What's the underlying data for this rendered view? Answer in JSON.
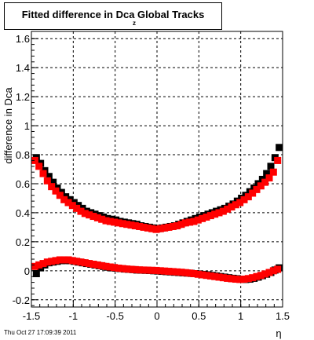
{
  "title": {
    "text": "Fitted difference in Dca   Global Tracks",
    "subscript": "z"
  },
  "footer": {
    "timestamp": "Thu Oct 27 17:09:39 2011"
  },
  "colors": {
    "series_black": "#000000",
    "series_red": "#ff0000",
    "grid": "#000000",
    "frame": "#000000"
  },
  "chart_data": {
    "type": "scatter",
    "title": "Fitted difference in Dca   Global Tracks",
    "xlabel": "η",
    "ylabel": "difference in Dca",
    "xlim": [
      -1.5,
      1.5
    ],
    "ylim": [
      -0.25,
      1.65
    ],
    "grid": true,
    "x_ticks": [
      "-1.5",
      "-1",
      "-0.5",
      "0",
      "0.5",
      "1",
      "1.5"
    ],
    "y_ticks": [
      "-0.2",
      "0",
      "0.2",
      "0.4",
      "0.6",
      "0.8",
      "1",
      "1.2",
      "1.4",
      "1.6"
    ],
    "x_tick_values": [
      -1.5,
      -1,
      -0.5,
      0,
      0.5,
      1,
      1.5
    ],
    "y_tick_values": [
      -0.2,
      0,
      0.2,
      0.4,
      0.6,
      0.8,
      1.0,
      1.2,
      1.4,
      1.6
    ],
    "x": [
      -1.45,
      -1.4,
      -1.35,
      -1.3,
      -1.25,
      -1.2,
      -1.15,
      -1.1,
      -1.05,
      -1.0,
      -0.95,
      -0.9,
      -0.85,
      -0.8,
      -0.75,
      -0.7,
      -0.65,
      -0.6,
      -0.55,
      -0.5,
      -0.45,
      -0.4,
      -0.35,
      -0.3,
      -0.25,
      -0.2,
      -0.15,
      -0.1,
      -0.05,
      0.0,
      0.05,
      0.1,
      0.15,
      0.2,
      0.25,
      0.3,
      0.35,
      0.4,
      0.45,
      0.5,
      0.55,
      0.6,
      0.65,
      0.7,
      0.75,
      0.8,
      0.85,
      0.9,
      0.95,
      1.0,
      1.05,
      1.1,
      1.15,
      1.2,
      1.25,
      1.3,
      1.35,
      1.4,
      1.45
    ],
    "series": [
      {
        "color": "#000000",
        "upper": [
          0.78,
          0.74,
          0.69,
          0.65,
          0.61,
          0.57,
          0.54,
          0.51,
          0.49,
          0.47,
          0.45,
          0.43,
          0.41,
          0.4,
          0.39,
          0.38,
          0.37,
          0.36,
          0.355,
          0.35,
          0.34,
          0.335,
          0.33,
          0.325,
          0.32,
          0.31,
          0.305,
          0.3,
          0.295,
          0.29,
          0.295,
          0.3,
          0.305,
          0.31,
          0.32,
          0.33,
          0.34,
          0.35,
          0.36,
          0.37,
          0.38,
          0.39,
          0.4,
          0.41,
          0.42,
          0.43,
          0.445,
          0.46,
          0.48,
          0.5,
          0.52,
          0.545,
          0.57,
          0.6,
          0.63,
          0.67,
          0.72,
          0.78,
          0.85
        ],
        "lower": [
          -0.02,
          0.02,
          0.04,
          0.055,
          0.06,
          0.065,
          0.07,
          0.07,
          0.07,
          0.065,
          0.06,
          0.055,
          0.05,
          0.045,
          0.04,
          0.035,
          0.03,
          0.025,
          0.02,
          0.018,
          0.015,
          0.012,
          0.01,
          0.008,
          0.005,
          0.004,
          0.003,
          0.002,
          0.0,
          -0.002,
          -0.004,
          -0.006,
          -0.008,
          -0.01,
          -0.012,
          -0.014,
          -0.016,
          -0.018,
          -0.02,
          -0.022,
          -0.025,
          -0.028,
          -0.032,
          -0.036,
          -0.04,
          -0.044,
          -0.048,
          -0.052,
          -0.055,
          -0.058,
          -0.06,
          -0.058,
          -0.052,
          -0.044,
          -0.034,
          -0.024,
          -0.012,
          0.005,
          0.02
        ]
      },
      {
        "color": "#ff0000",
        "upper": [
          0.76,
          0.72,
          0.67,
          0.62,
          0.58,
          0.55,
          0.52,
          0.49,
          0.47,
          0.45,
          0.43,
          0.41,
          0.395,
          0.385,
          0.375,
          0.365,
          0.355,
          0.345,
          0.34,
          0.335,
          0.33,
          0.325,
          0.32,
          0.315,
          0.31,
          0.305,
          0.3,
          0.295,
          0.29,
          0.285,
          0.29,
          0.295,
          0.3,
          0.305,
          0.31,
          0.32,
          0.33,
          0.335,
          0.34,
          0.35,
          0.36,
          0.37,
          0.38,
          0.39,
          0.4,
          0.41,
          0.425,
          0.44,
          0.455,
          0.47,
          0.49,
          0.51,
          0.535,
          0.56,
          0.585,
          0.61,
          0.64,
          0.68,
          0.76
        ],
        "lower": [
          0.03,
          0.04,
          0.05,
          0.06,
          0.065,
          0.07,
          0.075,
          0.075,
          0.075,
          0.07,
          0.065,
          0.06,
          0.055,
          0.05,
          0.045,
          0.04,
          0.035,
          0.03,
          0.026,
          0.022,
          0.018,
          0.015,
          0.012,
          0.01,
          0.008,
          0.006,
          0.005,
          0.004,
          0.003,
          0.002,
          0.0,
          -0.002,
          -0.004,
          -0.006,
          -0.008,
          -0.01,
          -0.013,
          -0.016,
          -0.02,
          -0.024,
          -0.028,
          -0.032,
          -0.036,
          -0.04,
          -0.044,
          -0.048,
          -0.052,
          -0.055,
          -0.058,
          -0.06,
          -0.058,
          -0.054,
          -0.048,
          -0.04,
          -0.032,
          -0.022,
          -0.012,
          0.0,
          0.01
        ]
      }
    ]
  }
}
